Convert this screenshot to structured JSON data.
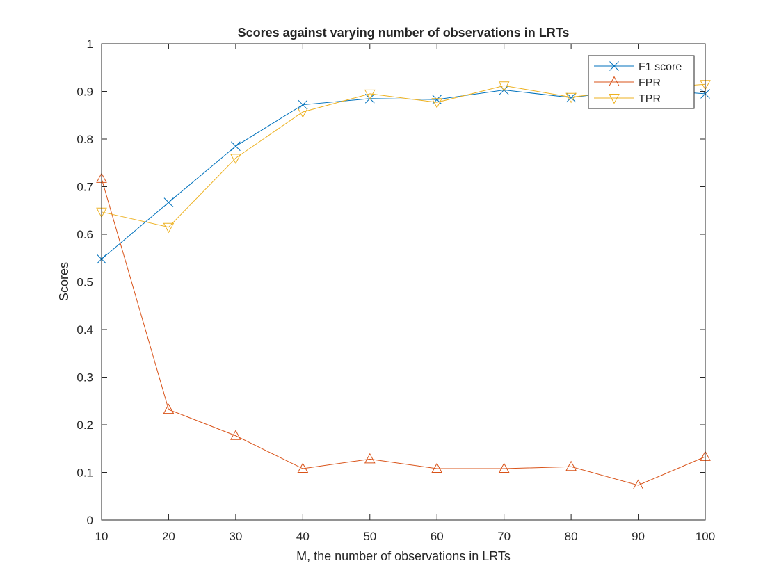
{
  "chart_data": {
    "type": "line",
    "title": "Scores against varying number of observations in LRTs",
    "xlabel": "M, the number of observations in LRTs",
    "ylabel": "Scores",
    "x": [
      10,
      20,
      30,
      40,
      50,
      60,
      70,
      80,
      90,
      100
    ],
    "xlim": [
      10,
      100
    ],
    "ylim": [
      0,
      1
    ],
    "xticks": [
      "10",
      "20",
      "30",
      "40",
      "50",
      "60",
      "70",
      "80",
      "90",
      "100"
    ],
    "yticks": [
      "0",
      "0.1",
      "0.2",
      "0.3",
      "0.4",
      "0.5",
      "0.6",
      "0.7",
      "0.8",
      "0.9",
      "1"
    ],
    "grid": false,
    "legend_position": "top-right",
    "series": [
      {
        "name": "F1 score",
        "color": "#0072BD",
        "marker": "x",
        "values": [
          0.548,
          0.667,
          0.785,
          0.872,
          0.885,
          0.883,
          0.903,
          0.887,
          0.905,
          0.895
        ]
      },
      {
        "name": "FPR",
        "color": "#D95319",
        "marker": "triangle-up",
        "values": [
          0.717,
          0.232,
          0.177,
          0.108,
          0.128,
          0.108,
          0.108,
          0.112,
          0.073,
          0.133
        ]
      },
      {
        "name": "TPR",
        "color": "#EDB120",
        "marker": "triangle-down",
        "values": [
          0.647,
          0.615,
          0.76,
          0.857,
          0.895,
          0.877,
          0.912,
          0.888,
          0.905,
          0.915
        ]
      }
    ]
  }
}
